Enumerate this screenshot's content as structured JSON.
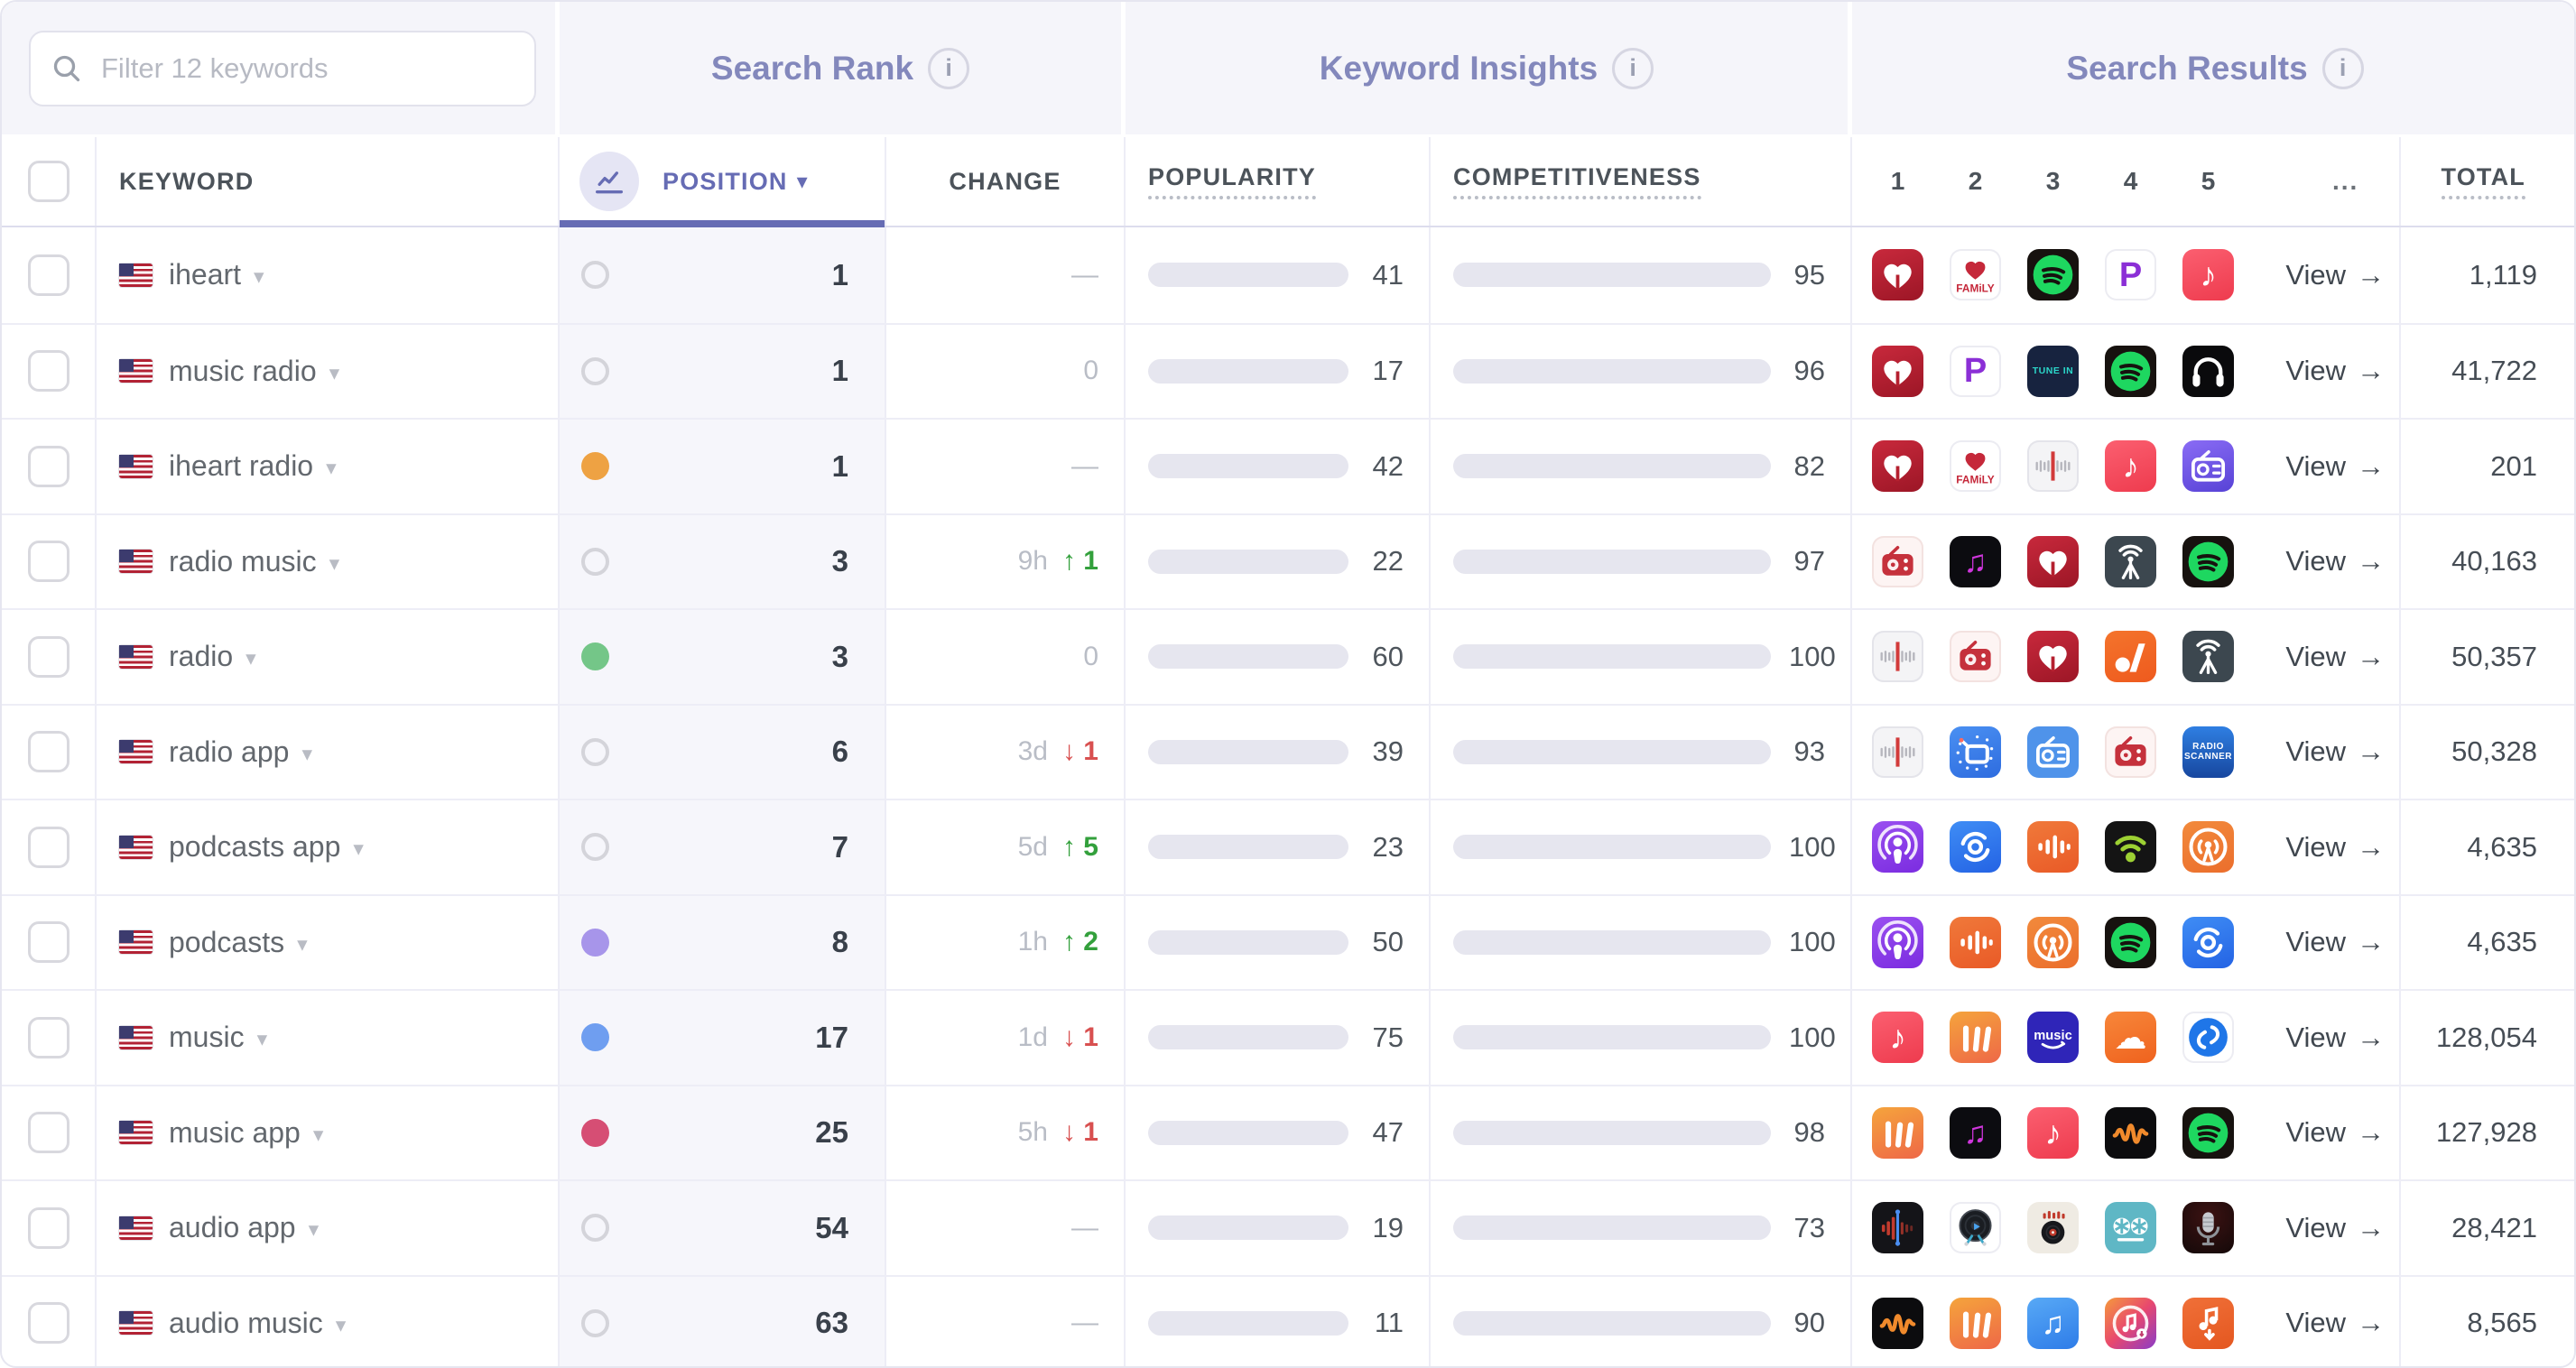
{
  "table": {
    "filter": {
      "placeholder": "Filter 12 keywords"
    },
    "groups": {
      "search_rank": "Search Rank",
      "keyword_insights": "Keyword Insights",
      "search_results": "Search Results"
    },
    "columns": {
      "keyword": "KEYWORD",
      "position": "POSITION",
      "change": "CHANGE",
      "popularity": "POPULARITY",
      "competitiveness": "COMPETITIVENESS",
      "result_ranks": [
        "1",
        "2",
        "3",
        "4",
        "5",
        "..."
      ],
      "total": "TOTAL"
    },
    "view_label": "View",
    "keyword_count": 12,
    "rows": [
      {
        "keyword": "iheart",
        "flag": "us",
        "dot": null,
        "position": "1",
        "change": {
          "text": "—"
        },
        "popularity": 41,
        "competitiveness": 95,
        "icons": [
          "iheartradio",
          "iheart-family",
          "spotify",
          "pandora",
          "apple-music"
        ],
        "total": "1,119"
      },
      {
        "keyword": "music radio",
        "flag": "us",
        "dot": null,
        "position": "1",
        "change": {
          "text": "0"
        },
        "popularity": 17,
        "competitiveness": 96,
        "icons": [
          "iheartradio",
          "pandora",
          "tunein",
          "spotify",
          "headphones"
        ],
        "total": "41,722"
      },
      {
        "keyword": "iheart radio",
        "flag": "us",
        "dot": "orange",
        "position": "1",
        "change": {
          "text": "—"
        },
        "popularity": 42,
        "competitiveness": 82,
        "icons": [
          "iheartradio",
          "iheart-family",
          "radio-tuner",
          "apple-music",
          "radio-purple"
        ],
        "total": "201"
      },
      {
        "keyword": "radio music",
        "flag": "us",
        "dot": null,
        "position": "3",
        "change": {
          "time": "9h",
          "dir": "up",
          "delta": "1"
        },
        "popularity": 22,
        "competitiveness": 97,
        "icons": [
          "mytuner-radio",
          "music-note-black",
          "iheartradio",
          "radio-antenna",
          "spotify"
        ],
        "total": "40,163"
      },
      {
        "keyword": "radio",
        "flag": "us",
        "dot": "green",
        "position": "3",
        "change": {
          "text": "0"
        },
        "popularity": 60,
        "competitiveness": 100,
        "icons": [
          "radio-tuner",
          "mytuner-radio",
          "iheartradio",
          "audacy",
          "radio-antenna"
        ],
        "total": "50,357"
      },
      {
        "keyword": "radio app",
        "flag": "us",
        "dot": null,
        "position": "6",
        "change": {
          "time": "3d",
          "dir": "down",
          "delta": "1"
        },
        "popularity": 39,
        "competitiveness": 93,
        "icons": [
          "radio-tuner",
          "clock-blue",
          "simple-radio",
          "mytuner-radio",
          "radio-scanner"
        ],
        "total": "50,328"
      },
      {
        "keyword": "podcasts app",
        "flag": "us",
        "dot": null,
        "position": "7",
        "change": {
          "time": "5d",
          "dir": "up",
          "delta": "5"
        },
        "popularity": 23,
        "competitiveness": 100,
        "icons": [
          "apple-podcasts",
          "podcast-player",
          "castbox",
          "podbean",
          "overcast"
        ],
        "total": "4,635"
      },
      {
        "keyword": "podcasts",
        "flag": "us",
        "dot": "purple",
        "position": "8",
        "change": {
          "time": "1h",
          "dir": "up",
          "delta": "2"
        },
        "popularity": 50,
        "competitiveness": 100,
        "icons": [
          "apple-podcasts",
          "castbox",
          "overcast",
          "spotify",
          "podcast-player"
        ],
        "total": "4,635"
      },
      {
        "keyword": "music",
        "flag": "us",
        "dot": "blue",
        "position": "17",
        "change": {
          "time": "1d",
          "dir": "down",
          "delta": "1"
        },
        "popularity": 75,
        "competitiveness": 100,
        "icons": [
          "apple-music",
          "musi",
          "amazon-music",
          "soundcloud",
          "shazam"
        ],
        "total": "128,054"
      },
      {
        "keyword": "music app",
        "flag": "us",
        "dot": "rose",
        "position": "25",
        "change": {
          "time": "5h",
          "dir": "down",
          "delta": "1"
        },
        "popularity": 47,
        "competitiveness": 98,
        "icons": [
          "musi",
          "music-note-black",
          "apple-music",
          "audiomack",
          "spotify"
        ],
        "total": "127,928"
      },
      {
        "keyword": "audio app",
        "flag": "us",
        "dot": null,
        "position": "54",
        "change": {
          "text": "—"
        },
        "popularity": 19,
        "competitiveness": 73,
        "icons": [
          "audio-editor",
          "vinyl-player",
          "dj-mixer",
          "tape-recorder",
          "microphone"
        ],
        "total": "28,421"
      },
      {
        "keyword": "audio music",
        "flag": "us",
        "dot": null,
        "position": "63",
        "change": {
          "text": "—"
        },
        "popularity": 11,
        "competitiveness": 90,
        "icons": [
          "audiomack",
          "musi",
          "music-note-blue",
          "music-downloader",
          "music-download"
        ],
        "total": "8,565"
      }
    ]
  },
  "colors": {
    "accent_purple": "#666cb4",
    "bar_fill": "#7c81c4",
    "bar_track": "#e6e6ef",
    "change_up": "#33a03c",
    "change_down": "#d85050",
    "muted": "#b9bdc6",
    "dots": {
      "orange": "#eea243",
      "green": "#74c688",
      "purple": "#a795ea",
      "blue": "#6f9ef0",
      "rose": "#d64e74"
    }
  },
  "icon_defs": {
    "iheartradio": {
      "kind": "svg",
      "svg": "iheart",
      "bg": "linear-gradient(160deg,#c8293c,#9c1626)"
    },
    "iheart-family": {
      "kind": "svg",
      "svg": "iheartfam",
      "bg": "#ffffff",
      "border": "#ececf2"
    },
    "spotify": {
      "kind": "svg",
      "svg": "spotify",
      "bg": "#17120f"
    },
    "pandora": {
      "kind": "glyph",
      "glyph": "P",
      "bg": "#ffffff",
      "border": "#ececf2",
      "color": "#8b2fd6",
      "size": 38
    },
    "apple-music": {
      "kind": "glyph",
      "glyph": "♪",
      "bg": "linear-gradient(160deg,#fb5f70,#ee3b4e)",
      "color": "#ffffff",
      "size": 37
    },
    "tunein": {
      "kind": "text",
      "lines": [
        "TUNE IN"
      ],
      "bg": "#17233f",
      "color": "#2bd6c9",
      "size": 10.5
    },
    "headphones": {
      "kind": "svg",
      "svg": "headphones",
      "bg": "#0a0a0c"
    },
    "radio-tuner": {
      "kind": "svg",
      "svg": "tuner",
      "bg": "#f4f4f6",
      "border": "#e4e4ea"
    },
    "radio-purple": {
      "kind": "svg",
      "svg": "radioOutline",
      "bg": "linear-gradient(160deg,#8a6cf5,#5742d6)",
      "color": "#ffffff"
    },
    "mytuner-radio": {
      "kind": "svg",
      "svg": "radioSolid",
      "bg": "#fdf4f3",
      "border": "#f3e2e0",
      "color": "#c5313c"
    },
    "music-note-black": {
      "kind": "glyph",
      "glyph": "♫",
      "bg": "#0c0c10",
      "color": "#cf36dc",
      "size": 35
    },
    "radio-antenna": {
      "kind": "svg",
      "svg": "antenna",
      "bg": "#3c474f"
    },
    "audacy": {
      "kind": "svg",
      "svg": "audacy",
      "bg": "linear-gradient(160deg,#f4742c,#ee5a1e)"
    },
    "clock-blue": {
      "kind": "svg",
      "svg": "clocktv",
      "bg": "linear-gradient(160deg,#4a90f2,#2e6cdf)"
    },
    "simple-radio": {
      "kind": "svg",
      "svg": "radioOutline",
      "bg": "#4f93ea",
      "color": "#ffffff"
    },
    "radio-scanner": {
      "kind": "text",
      "lines": [
        "RADIO",
        "SCANNER"
      ],
      "bg": "linear-gradient(180deg,#2f7fe2,#17479f)",
      "color": "#ffffff",
      "size": 10
    },
    "apple-podcasts": {
      "kind": "svg",
      "svg": "podcasts",
      "bg": "linear-gradient(160deg,#9a50f0,#7b2ce0)"
    },
    "podcast-player": {
      "kind": "svg",
      "svg": "swirl",
      "bg": "linear-gradient(160deg,#3f8df5,#2463e4)"
    },
    "castbox": {
      "kind": "svg",
      "svg": "wave",
      "bg": "linear-gradient(160deg,#f0793a,#e95a27)"
    },
    "podbean": {
      "kind": "svg",
      "svg": "wifi",
      "bg": "#141414"
    },
    "overcast": {
      "kind": "svg",
      "svg": "overcast",
      "bg": "linear-gradient(160deg,#f28a3c,#eb6e2c)"
    },
    "musi": {
      "kind": "svg",
      "svg": "musi",
      "bg": "linear-gradient(160deg,#f5a43c,#ee6847)"
    },
    "amazon-music": {
      "kind": "svg",
      "svg": "amazon",
      "bg": "#2f25b8"
    },
    "soundcloud": {
      "kind": "glyph",
      "glyph": "☁",
      "bg": "linear-gradient(160deg,#f7873a,#ef621e)",
      "color": "#ffffff",
      "size": 36
    },
    "shazam": {
      "kind": "svg",
      "svg": "shazam",
      "bg": "#ffffff",
      "border": "#ececf2"
    },
    "audiomack": {
      "kind": "svg",
      "svg": "pulse",
      "bg": "#0c0c0e"
    },
    "audio-editor": {
      "kind": "svg",
      "svg": "editwave",
      "bg": "#141418"
    },
    "vinyl-player": {
      "kind": "svg",
      "svg": "vinyl",
      "bg": "#ffffff",
      "border": "#ececf2"
    },
    "dj-mixer": {
      "kind": "svg",
      "svg": "djdisc",
      "bg": "#efebe3"
    },
    "tape-recorder": {
      "kind": "svg",
      "svg": "reels",
      "bg": "#5fb7c5"
    },
    "microphone": {
      "kind": "svg",
      "svg": "mic",
      "bg": "radial-gradient(circle at 50% 28%,#3c1212,#140909)"
    },
    "music-note-blue": {
      "kind": "glyph",
      "glyph": "♫",
      "bg": "linear-gradient(160deg,#58a9f6,#2e7ce8)",
      "color": "#ffffff",
      "size": 35
    },
    "music-downloader": {
      "kind": "svg",
      "svg": "ringnote",
      "bg": "linear-gradient(135deg,#f59a3c,#e8486e,#8a3cc8)"
    },
    "music-download": {
      "kind": "svg",
      "svg": "notedown",
      "bg": "linear-gradient(160deg,#f07038,#e45720)"
    }
  }
}
